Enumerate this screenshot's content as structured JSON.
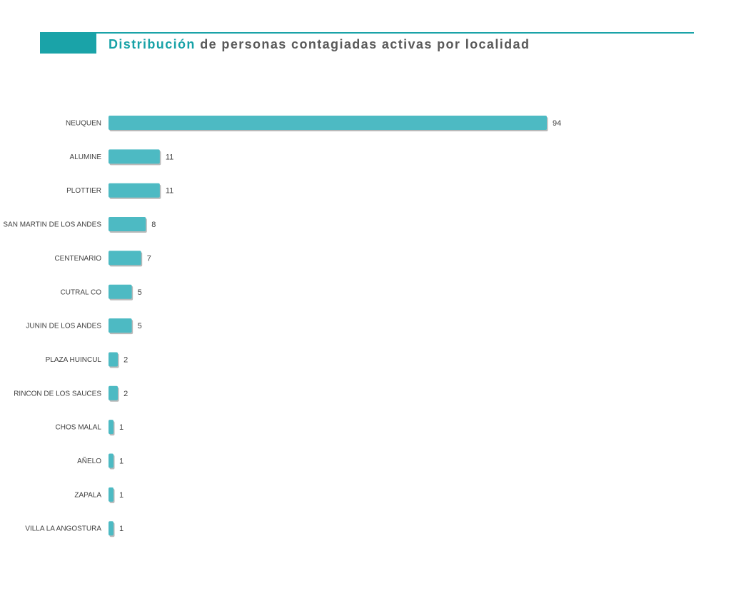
{
  "colors": {
    "accent": "#1aa3a8",
    "bar": "#4dbac3",
    "bar_shadow": "#b9b9b9",
    "text": "#3f3f3f"
  },
  "chart_data": {
    "type": "bar",
    "orientation": "horizontal",
    "title_accent": "Distribución",
    "title_rest": " de personas contagiadas activas por localidad",
    "categories": [
      "NEUQUEN",
      "ALUMINE",
      "PLOTTIER",
      "SAN MARTIN DE LOS ANDES",
      "CENTENARIO",
      "CUTRAL CO",
      "JUNIN DE LOS ANDES",
      "PLAZA HUINCUL",
      "RINCON DE LOS SAUCES",
      "CHOS MALAL",
      "AÑELO",
      "ZAPALA",
      "VILLA LA ANGOSTURA"
    ],
    "values": [
      94,
      11,
      11,
      8,
      7,
      5,
      5,
      2,
      2,
      1,
      1,
      1,
      1
    ],
    "xlim": [
      0,
      94
    ],
    "grid": false,
    "legend": "none",
    "data_labels": true
  }
}
